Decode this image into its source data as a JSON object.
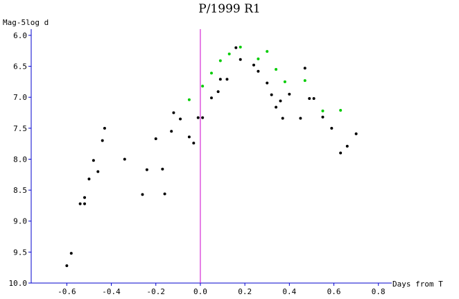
{
  "chart_data": {
    "type": "scatter",
    "title": "P/1999 R1",
    "xlabel": "Days from T",
    "ylabel": "Mag-5log d",
    "xlim": [
      -0.76,
      0.86
    ],
    "ylim": [
      10.0,
      5.9
    ],
    "y_inverted": true,
    "x_ticks": [
      -0.6,
      -0.4,
      -0.2,
      0.0,
      0.2,
      0.4,
      0.6,
      0.8
    ],
    "x_tick_labels": [
      "-0.6",
      "-0.4",
      "-0.2",
      "0.0",
      "0.2",
      "0.4",
      "0.6",
      "0.8"
    ],
    "y_ticks": [
      6.0,
      6.5,
      7.0,
      7.5,
      8.0,
      8.5,
      9.0,
      9.5,
      10.0
    ],
    "y_tick_labels": [
      "6.0",
      "6.5",
      "7.0",
      "7.5",
      "8.0",
      "8.5",
      "9.0",
      "9.5",
      "10.0"
    ],
    "reference_line": {
      "x": 0.0,
      "color": "#cc00cc"
    },
    "grid": false,
    "series": [
      {
        "color": "#000000",
        "points": [
          [
            -0.6,
            9.72
          ],
          [
            -0.58,
            9.52
          ],
          [
            -0.54,
            8.72
          ],
          [
            -0.52,
            8.72
          ],
          [
            -0.52,
            8.62
          ],
          [
            -0.5,
            8.32
          ],
          [
            -0.48,
            8.02
          ],
          [
            -0.46,
            8.2
          ],
          [
            -0.44,
            7.7
          ],
          [
            -0.43,
            7.5
          ],
          [
            -0.34,
            8.0
          ],
          [
            -0.26,
            8.57
          ],
          [
            -0.24,
            8.17
          ],
          [
            -0.2,
            7.67
          ],
          [
            -0.17,
            8.16
          ],
          [
            -0.16,
            8.56
          ],
          [
            -0.13,
            7.55
          ],
          [
            -0.12,
            7.25
          ],
          [
            -0.09,
            7.35
          ],
          [
            -0.05,
            7.64
          ],
          [
            -0.03,
            7.74
          ],
          [
            -0.01,
            7.33
          ],
          [
            0.01,
            7.33
          ],
          [
            0.05,
            7.01
          ],
          [
            0.08,
            6.91
          ],
          [
            0.09,
            6.71
          ],
          [
            0.12,
            6.71
          ],
          [
            0.16,
            6.2
          ],
          [
            0.18,
            6.39
          ],
          [
            0.24,
            6.48
          ],
          [
            0.26,
            6.58
          ],
          [
            0.3,
            6.77
          ],
          [
            0.32,
            6.96
          ],
          [
            0.34,
            7.16
          ],
          [
            0.36,
            7.06
          ],
          [
            0.37,
            7.34
          ],
          [
            0.4,
            6.95
          ],
          [
            0.45,
            7.34
          ],
          [
            0.47,
            6.53
          ],
          [
            0.49,
            7.02
          ],
          [
            0.51,
            7.02
          ],
          [
            0.55,
            7.32
          ],
          [
            0.59,
            7.5
          ],
          [
            0.63,
            7.9
          ],
          [
            0.66,
            7.79
          ],
          [
            0.7,
            7.59
          ]
        ]
      },
      {
        "color": "#00cc00",
        "points": [
          [
            -0.05,
            7.04
          ],
          [
            0.01,
            6.82
          ],
          [
            0.05,
            6.61
          ],
          [
            0.09,
            6.41
          ],
          [
            0.13,
            6.3
          ],
          [
            0.18,
            6.19
          ],
          [
            0.26,
            6.38
          ],
          [
            0.3,
            6.26
          ],
          [
            0.34,
            6.55
          ],
          [
            0.38,
            6.75
          ],
          [
            0.47,
            6.73
          ],
          [
            0.55,
            7.22
          ],
          [
            0.63,
            7.21
          ]
        ]
      }
    ]
  }
}
